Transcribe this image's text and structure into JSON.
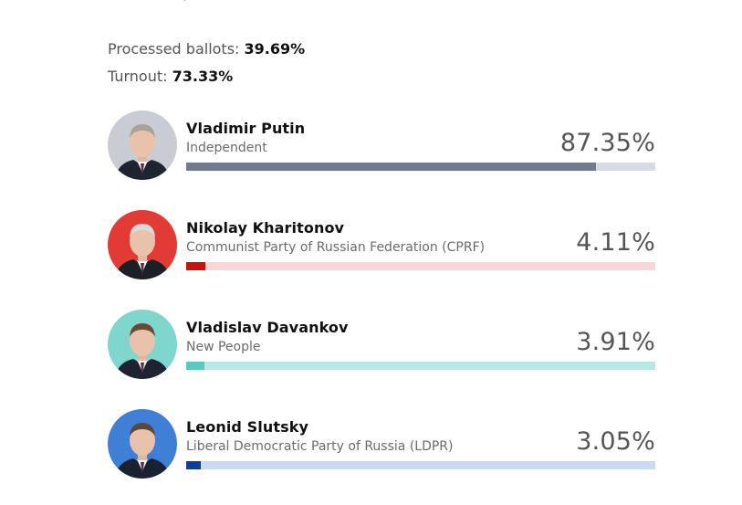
{
  "stats": {
    "processed_label": "Processed ballots:",
    "processed_value": "39.69%",
    "turnout_label": "Turnout:",
    "turnout_value": "73.33%"
  },
  "candidates": [
    {
      "name": "Vladimir Putin",
      "party": "Independent",
      "percent_text": "87.35%",
      "percent": 87.35,
      "fill_color": "#717b8f",
      "track_color": "#d6dbe4",
      "avatar_bg": "#c9ccd2"
    },
    {
      "name": "Nikolay Kharitonov",
      "party": "Communist Party of Russian Federation (CPRF)",
      "percent_text": "4.11%",
      "percent": 4.11,
      "fill_color": "#cc1111",
      "track_color": "#fbd6d6",
      "avatar_bg": "#e23a35"
    },
    {
      "name": "Vladislav Davankov",
      "party": "New People",
      "percent_text": "3.91%",
      "percent": 3.91,
      "fill_color": "#5cc7bd",
      "track_color": "#b8e8e3",
      "avatar_bg": "#7fd6cd"
    },
    {
      "name": "Leonid Slutsky",
      "party": "Liberal Democratic Party of Russia (LDPR)",
      "percent_text": "3.05%",
      "percent": 3.05,
      "fill_color": "#0b3f98",
      "track_color": "#c9daf4",
      "avatar_bg": "#3f7fd6"
    }
  ],
  "chart_data": {
    "type": "bar",
    "orientation": "horizontal",
    "categories": [
      "Vladimir Putin",
      "Nikolay Kharitonov",
      "Vladislav Davankov",
      "Leonid Slutsky"
    ],
    "values": [
      87.35,
      4.11,
      3.91,
      3.05
    ],
    "xlim": [
      0,
      100
    ],
    "grid": false
  }
}
